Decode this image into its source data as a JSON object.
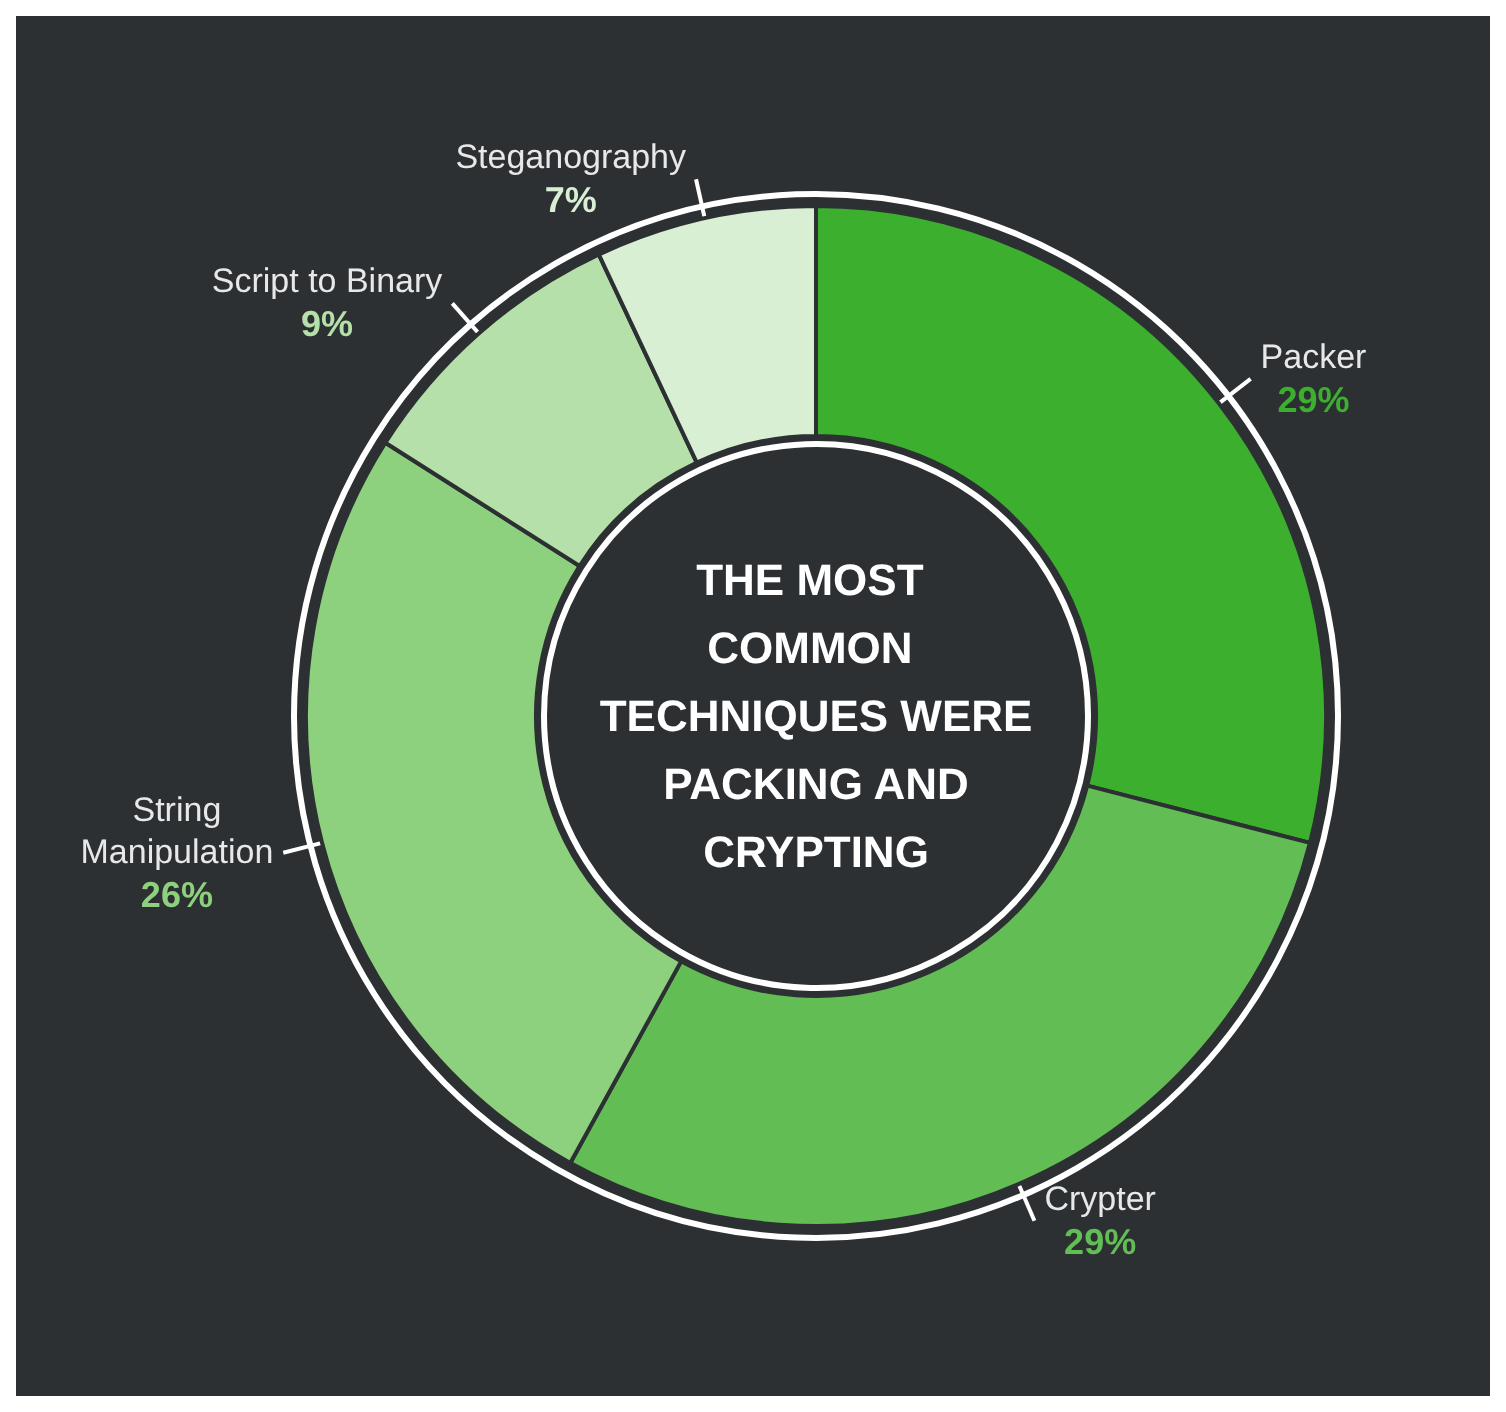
{
  "chart_data": {
    "type": "donut",
    "title": "THE MOST COMMON TECHNIQUES WERE PACKING AND CRYPTING",
    "categories": [
      "Packer",
      "Crypter",
      "String Manipulation",
      "Script to Binary",
      "Steganography"
    ],
    "values": [
      29,
      29,
      26,
      9,
      7
    ],
    "colors": [
      "#3caf2e",
      "#62bd55",
      "#8dd07e",
      "#b5e0a9",
      "#d8efd3"
    ],
    "value_labels": [
      "29%",
      "29%",
      "26%",
      "9%",
      "7%"
    ],
    "legend": false
  }
}
